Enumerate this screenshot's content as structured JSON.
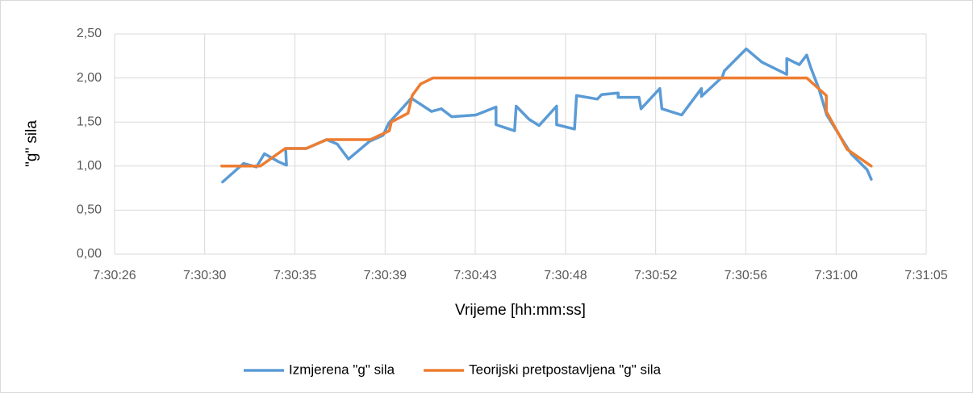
{
  "chart_data": {
    "type": "line",
    "xlabel": "Vrijeme [hh:mm:ss]",
    "ylabel": "\"g\" sila",
    "xlim": [
      "7:30:26",
      "7:31:05"
    ],
    "xticks": [
      {
        "value": "7:30:26",
        "label": "7:30:26"
      },
      {
        "value": "7:30:30.33",
        "label": "7:30:30"
      },
      {
        "value": "7:30:34.67",
        "label": "7:30:35"
      },
      {
        "value": "7:30:39",
        "label": "7:30:39"
      },
      {
        "value": "7:30:43.33",
        "label": "7:30:43"
      },
      {
        "value": "7:30:47.67",
        "label": "7:30:48"
      },
      {
        "value": "7:30:52",
        "label": "7:30:52"
      },
      {
        "value": "7:30:56.33",
        "label": "7:30:56"
      },
      {
        "value": "7:31:00.67",
        "label": "7:31:00"
      },
      {
        "value": "7:31:05",
        "label": "7:31:05"
      }
    ],
    "ylim": [
      0,
      2.5
    ],
    "yticks": [
      {
        "value": 0,
        "label": "0,00"
      },
      {
        "value": 0.5,
        "label": "0,50"
      },
      {
        "value": 1,
        "label": "1,00"
      },
      {
        "value": 1.5,
        "label": "1,50"
      },
      {
        "value": 2,
        "label": "2,00"
      },
      {
        "value": 2.5,
        "label": "2,50"
      }
    ],
    "grid": true,
    "legend": "bottom",
    "series": [
      {
        "name": "Izmjerena \"g\" sila",
        "color": "#5b9bd5",
        "x": [
          "7:30:31.19",
          "7:30:32.2",
          "7:30:32.82",
          "7:30:33.2",
          "7:30:33.87",
          "7:30:34.26",
          "7:30:34.22",
          "7:30:34.84",
          "7:30:35.22",
          "7:30:36.19",
          "7:30:36.7",
          "7:30:37.24",
          "7:30:38.25",
          "7:30:38.9",
          "7:30:39.18",
          "7:30:39.8",
          "7:30:40.26",
          "7:30:41.23",
          "7:30:41.7",
          "7:30:42.2",
          "7:30:43.36",
          "7:30:44.33",
          "7:30:44.33",
          "7:30:45.22",
          "7:30:45.3",
          "7:30:45.92",
          "7:30:46.4",
          "7:30:47.24",
          "7:30:47.24",
          "7:30:48.1",
          "7:30:48.2",
          "7:30:49.2",
          "7:30:49.4",
          "7:30:50.2",
          "7:30:50.2",
          "7:30:51.2",
          "7:30:51.3",
          "7:30:52.2",
          "7:30:52.3",
          "7:30:53.25",
          "7:30:54.2",
          "7:30:54.2",
          "7:30:55.2",
          "7:30:55.3",
          "7:30:56.35",
          "7:30:57.1",
          "7:30:58.3",
          "7:30:58.3",
          "7:30:58.9",
          "7:30:59.26",
          "7:30:59.45",
          "7:30:59.84",
          "7:31:00.22",
          "7:31:01.39",
          "7:31:02.16",
          "7:31:02.36"
        ],
        "values": [
          0.82,
          1.03,
          0.99,
          1.14,
          1.05,
          1.01,
          1.2,
          1.2,
          1.2,
          1.3,
          1.25,
          1.08,
          1.28,
          1.35,
          1.49,
          1.65,
          1.77,
          1.62,
          1.65,
          1.56,
          1.58,
          1.67,
          1.47,
          1.4,
          1.68,
          1.53,
          1.46,
          1.68,
          1.47,
          1.42,
          1.8,
          1.76,
          1.81,
          1.83,
          1.78,
          1.78,
          1.65,
          1.88,
          1.65,
          1.58,
          1.88,
          1.79,
          2.01,
          2.08,
          2.33,
          2.18,
          2.04,
          2.22,
          2.15,
          2.26,
          2.12,
          1.88,
          1.58,
          1.14,
          0.96,
          0.85
        ]
      },
      {
        "name": "Teorijski pretpostavljena \"g\" sila",
        "color": "#ed7d31",
        "x": [
          "7:30:31.15",
          "7:30:33",
          "7:30:34.2",
          "7:30:35.2",
          "7:30:36.2",
          "7:30:38.3",
          "7:30:39.2",
          "7:30:39.3",
          "7:30:40.1",
          "7:30:40.3",
          "7:30:40.7",
          "7:30:41.3",
          "7:30:59.26",
          "7:31:00.2",
          "7:31:00.2",
          "7:31:01.2",
          "7:31:02.36"
        ],
        "values": [
          1,
          1,
          1.2,
          1.2,
          1.3,
          1.3,
          1.4,
          1.5,
          1.6,
          1.8,
          1.93,
          2,
          2,
          1.8,
          1.62,
          1.19,
          1
        ]
      }
    ]
  }
}
